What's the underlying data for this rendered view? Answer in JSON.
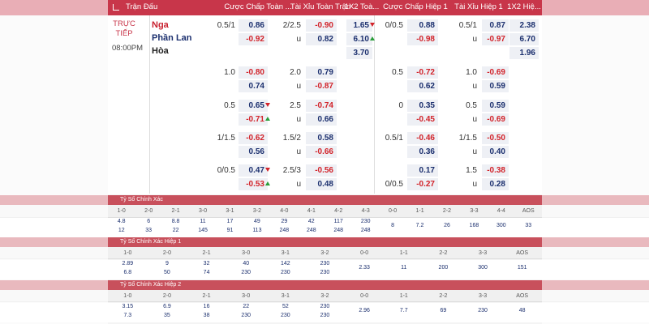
{
  "header": {
    "columns": [
      "Trận Đấu",
      "Cược Chấp Toàn ...",
      "Tài Xỉu Toàn Trận",
      "1X2 Toà...",
      "Cược Chấp Hiệp 1",
      "Tài Xỉu Hiệp 1",
      "1X2 Hiệ..."
    ]
  },
  "match": {
    "status": "TRỰC TIẾP",
    "time": "08:00PM",
    "teams": [
      "Nga",
      "Phần Lan",
      "Hòa"
    ]
  },
  "groups": [
    {
      "ft_hdp": [
        {
          "line": "0.5/1",
          "odds": "0.86"
        },
        {
          "odds": "-0.92"
        }
      ],
      "ft_ou": [
        {
          "line": "2/2.5",
          "odds": "-0.90"
        },
        {
          "line": "u",
          "odds": "0.82"
        }
      ],
      "ft_1x2": [
        {
          "odds": "1.65",
          "trend": "down"
        },
        {
          "odds": "6.10",
          "trend": "up"
        },
        {
          "odds": "3.70"
        }
      ],
      "h1_hdp": [
        {
          "line": "0/0.5",
          "odds": "0.88"
        },
        {
          "odds": "-0.98"
        }
      ],
      "h1_ou": [
        {
          "line": "0.5/1",
          "odds": "0.87"
        },
        {
          "line": "u",
          "odds": "-0.97"
        }
      ],
      "h1_1x2": [
        {
          "odds": "2.38"
        },
        {
          "odds": "6.70"
        },
        {
          "odds": "1.96"
        }
      ]
    },
    {
      "ft_hdp": [
        {
          "line": "1.0",
          "odds": "-0.80"
        },
        {
          "odds": "0.74"
        }
      ],
      "ft_ou": [
        {
          "line": "2.0",
          "odds": "0.79"
        },
        {
          "line": "u",
          "odds": "-0.87"
        }
      ],
      "h1_hdp": [
        {
          "line": "0.5",
          "odds": "-0.72"
        },
        {
          "odds": "0.62"
        }
      ],
      "h1_ou": [
        {
          "line": "1.0",
          "odds": "-0.69"
        },
        {
          "line": "u",
          "odds": "0.59"
        }
      ]
    },
    {
      "ft_hdp": [
        {
          "line": "0.5",
          "odds": "0.65",
          "trend": "down"
        },
        {
          "odds": "-0.71",
          "trend": "up"
        }
      ],
      "ft_ou": [
        {
          "line": "2.5",
          "odds": "-0.74"
        },
        {
          "line": "u",
          "odds": "0.66"
        }
      ],
      "h1_hdp": [
        {
          "line": "0",
          "odds": "0.35"
        },
        {
          "odds": "-0.45"
        }
      ],
      "h1_ou": [
        {
          "line": "0.5",
          "odds": "0.59"
        },
        {
          "line": "u",
          "odds": "-0.69"
        }
      ]
    },
    {
      "ft_hdp": [
        {
          "line": "1/1.5",
          "odds": "-0.62"
        },
        {
          "odds": "0.56"
        }
      ],
      "ft_ou": [
        {
          "line": "1.5/2",
          "odds": "0.58"
        },
        {
          "line": "u",
          "odds": "-0.66"
        }
      ],
      "h1_hdp": [
        {
          "line": "0.5/1",
          "odds": "-0.46"
        },
        {
          "odds": "0.36"
        }
      ],
      "h1_ou": [
        {
          "line": "1/1.5",
          "odds": "-0.50"
        },
        {
          "line": "u",
          "odds": "0.40"
        }
      ]
    },
    {
      "ft_hdp": [
        {
          "line": "0/0.5",
          "odds": "0.47",
          "trend": "down"
        },
        {
          "odds": "-0.53",
          "trend": "up"
        }
      ],
      "ft_ou": [
        {
          "line": "2.5/3",
          "odds": "-0.56"
        },
        {
          "line": "u",
          "odds": "0.48"
        }
      ],
      "h1_hdp": [
        {
          "odds": "0.17"
        },
        {
          "line": "0/0.5",
          "odds": "-0.27"
        }
      ],
      "h1_ou": [
        {
          "line": "1.5",
          "odds": "-0.38"
        },
        {
          "line": "u",
          "odds": "0.28"
        }
      ]
    }
  ],
  "sections": [
    {
      "title": "Tỷ Số Chính Xác",
      "scores": [
        "1-0",
        "2-0",
        "2-1",
        "3-0",
        "3-1",
        "3-2",
        "4-0",
        "4-1",
        "4-2",
        "4-3",
        "0-0",
        "1-1",
        "2-2",
        "3-3",
        "4-4",
        "AOS"
      ],
      "values": [
        [
          "4.8",
          "12"
        ],
        [
          "6",
          "33"
        ],
        [
          "8.8",
          "22"
        ],
        [
          "11",
          "145"
        ],
        [
          "17",
          "91"
        ],
        [
          "49",
          "113"
        ],
        [
          "29",
          "248"
        ],
        [
          "42",
          "248"
        ],
        [
          "117",
          "248"
        ],
        [
          "230",
          "248"
        ],
        [
          "8"
        ],
        [
          "7.2"
        ],
        [
          "26"
        ],
        [
          "168"
        ],
        [
          "300"
        ],
        [
          "33"
        ]
      ]
    },
    {
      "title": "Tỷ Số Chính Xác Hiệp 1",
      "scores": [
        "1-0",
        "2-0",
        "2-1",
        "3-0",
        "3-1",
        "3-2",
        "0-0",
        "1-1",
        "2-2",
        "3-3",
        "AOS"
      ],
      "values": [
        [
          "2.89",
          "6.8"
        ],
        [
          "9",
          "50"
        ],
        [
          "32",
          "74"
        ],
        [
          "40",
          "230"
        ],
        [
          "142",
          "230"
        ],
        [
          "230",
          "230"
        ],
        [
          "2.33"
        ],
        [
          "11"
        ],
        [
          "200"
        ],
        [
          "300"
        ],
        [
          "151"
        ]
      ]
    },
    {
      "title": "Tỷ Số Chính Xác Hiệp 2",
      "scores": [
        "1-0",
        "2-0",
        "2-1",
        "3-0",
        "3-1",
        "3-2",
        "0-0",
        "1-1",
        "2-2",
        "3-3",
        "AOS"
      ],
      "values": [
        [
          "3.15",
          "7.3"
        ],
        [
          "6.9",
          "35"
        ],
        [
          "16",
          "38"
        ],
        [
          "22",
          "230"
        ],
        [
          "52",
          "230"
        ],
        [
          "230",
          "230"
        ],
        [
          "2.96"
        ],
        [
          "7.7"
        ],
        [
          "69"
        ],
        [
          "230"
        ],
        [
          "48"
        ]
      ]
    }
  ]
}
